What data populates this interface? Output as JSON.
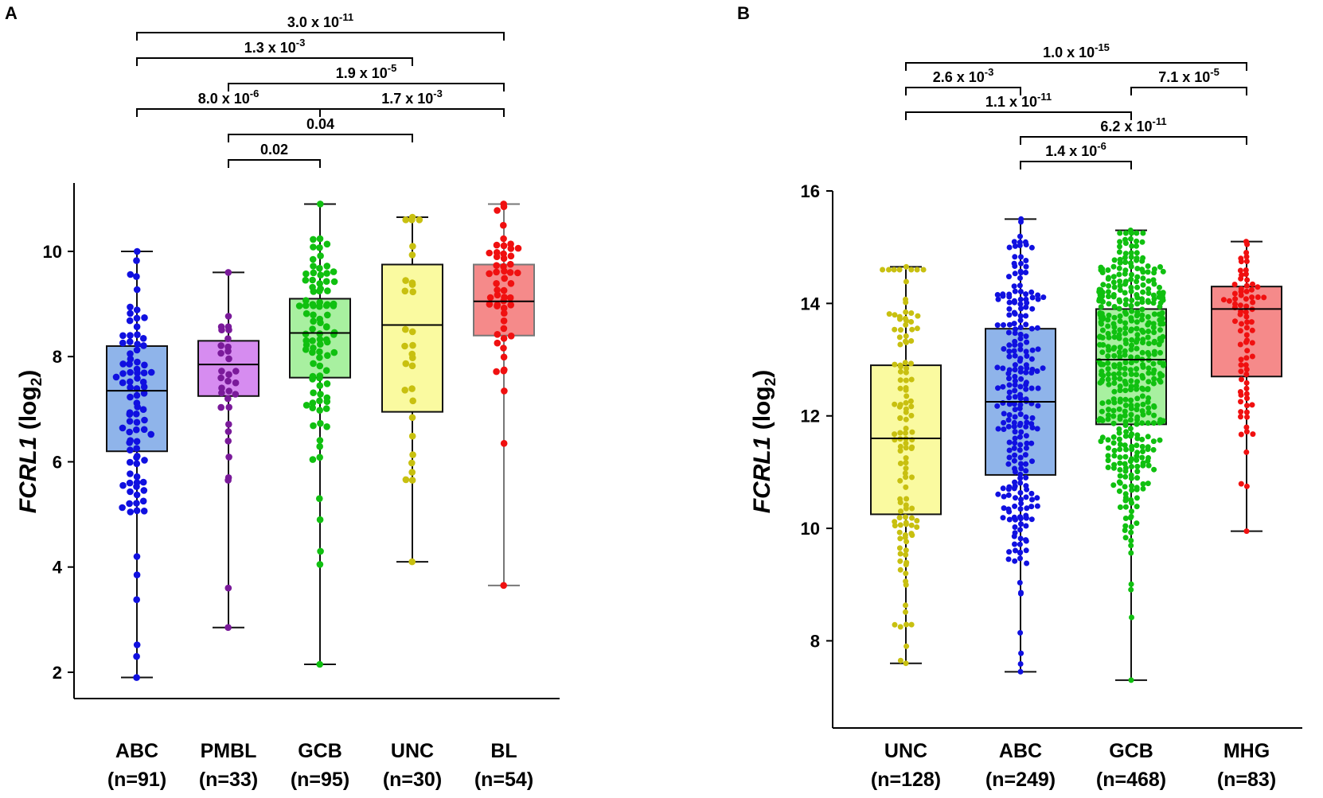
{
  "chart_data": [
    {
      "panel": "A",
      "type": "box",
      "ylabel_gene": "FCRL1",
      "ylabel_unit": "(log",
      "ylabel_sub": "2",
      "ylabel_close": ")",
      "ylim": [
        1.5,
        11.3
      ],
      "yticks": [
        {
          "value": 2,
          "label": "2"
        },
        {
          "value": 4,
          "label": "4"
        },
        {
          "value": 6,
          "label": "6"
        },
        {
          "value": 8,
          "label": "8"
        },
        {
          "value": 10,
          "label": "10"
        }
      ],
      "groups": [
        {
          "name": "ABC",
          "n_label": "(n=91)",
          "n": 91,
          "color": "#1010e0",
          "fill": "#8fb4ea",
          "min": 1.9,
          "q1": 6.2,
          "median": 7.35,
          "q3": 8.2,
          "max": 10.0,
          "extras": [
            1.9,
            2.3,
            3.85,
            4.2,
            10.0
          ]
        },
        {
          "name": "PMBL",
          "n_label": "(n=33)",
          "n": 33,
          "color": "#7a1a9a",
          "fill": "#d68cf0",
          "min": 2.85,
          "q1": 7.25,
          "median": 7.85,
          "q3": 8.3,
          "max": 9.6,
          "extras": [
            2.85,
            3.6,
            5.65,
            5.7,
            9.6
          ]
        },
        {
          "name": "GCB",
          "n_label": "(n=95)",
          "n": 95,
          "color": "#10c010",
          "fill": "#a8f0a0",
          "min": 2.15,
          "q1": 7.6,
          "median": 8.45,
          "q3": 9.1,
          "max": 10.9,
          "extras": [
            2.15,
            4.05,
            4.3,
            4.9,
            5.3,
            10.9
          ]
        },
        {
          "name": "UNC",
          "n_label": "(n=30)",
          "n": 30,
          "color": "#c8c010",
          "fill": "#fafaa0",
          "min": 4.1,
          "q1": 6.95,
          "median": 8.6,
          "q3": 9.75,
          "max": 10.65,
          "extras": [
            4.1,
            5.65,
            10.65
          ]
        },
        {
          "name": "BL",
          "n_label": "(n=54)",
          "n": 54,
          "color": "#f01010",
          "fill": "#f58a8a",
          "min": 3.65,
          "q1": 8.4,
          "median": 9.05,
          "q3": 9.75,
          "max": 10.9,
          "extras": [
            3.65,
            6.35,
            10.9
          ]
        }
      ],
      "comparisons": [
        {
          "from": 0,
          "to": 4,
          "mantissa": "3.0 x 10",
          "exponent": "-11",
          "level": 5
        },
        {
          "from": 0,
          "to": 3,
          "mantissa": "1.3 x 10",
          "exponent": "-3",
          "level": 4
        },
        {
          "from": 1,
          "to": 4,
          "mantissa": "1.9 x 10",
          "exponent": "-5",
          "level": 3
        },
        {
          "from": 0,
          "to": 2,
          "mantissa": "8.0 x 10",
          "exponent": "-6",
          "level": 2
        },
        {
          "from": 2,
          "to": 4,
          "mantissa": "1.7 x 10",
          "exponent": "-3",
          "level": 2
        },
        {
          "from": 1,
          "to": 3,
          "mantissa": "0.04",
          "exponent": "",
          "level": 1
        },
        {
          "from": 1,
          "to": 2,
          "mantissa": "0.02",
          "exponent": "",
          "level": 0
        }
      ]
    },
    {
      "panel": "B",
      "type": "box",
      "ylabel_gene": "FCRL1",
      "ylabel_unit": "(log",
      "ylabel_sub": "2",
      "ylabel_close": ")",
      "ylim": [
        6.45,
        16.0
      ],
      "yticks": [
        {
          "value": 8,
          "label": "8"
        },
        {
          "value": 10,
          "label": "10"
        },
        {
          "value": 12,
          "label": "12"
        },
        {
          "value": 14,
          "label": "14"
        },
        {
          "value": 16,
          "label": "16"
        }
      ],
      "groups": [
        {
          "name": "UNC",
          "n_label": "(n=128)",
          "n": 128,
          "color": "#c8c010",
          "fill": "#fafaa0",
          "min": 7.6,
          "q1": 10.25,
          "median": 11.6,
          "q3": 12.9,
          "max": 14.65,
          "extras": [
            7.6,
            14.65
          ]
        },
        {
          "name": "ABC",
          "n_label": "(n=249)",
          "n": 249,
          "color": "#1010e0",
          "fill": "#8fb4ea",
          "min": 7.45,
          "q1": 10.95,
          "median": 12.25,
          "q3": 13.55,
          "max": 15.5,
          "extras": [
            7.45,
            15.5
          ]
        },
        {
          "name": "GCB",
          "n_label": "(n=468)",
          "n": 468,
          "color": "#10c010",
          "fill": "#a8f0a0",
          "min": 7.3,
          "q1": 11.85,
          "median": 13.0,
          "q3": 13.9,
          "max": 15.3,
          "extras": [
            7.3,
            15.3
          ]
        },
        {
          "name": "MHG",
          "n_label": "(n=83)",
          "n": 83,
          "color": "#f01010",
          "fill": "#f58a8a",
          "min": 9.95,
          "q1": 12.7,
          "median": 13.9,
          "q3": 14.3,
          "max": 15.1,
          "extras": [
            9.95,
            15.1
          ]
        }
      ],
      "comparisons": [
        {
          "from": 0,
          "to": 3,
          "mantissa": "1.0 x 10",
          "exponent": "-15",
          "level": 4
        },
        {
          "from": 0,
          "to": 1,
          "mantissa": "2.6 x 10",
          "exponent": "-3",
          "level": 3
        },
        {
          "from": 2,
          "to": 3,
          "mantissa": "7.1 x 10",
          "exponent": "-5",
          "level": 3
        },
        {
          "from": 0,
          "to": 2,
          "mantissa": "1.1 x 10",
          "exponent": "-11",
          "level": 2
        },
        {
          "from": 1,
          "to": 3,
          "mantissa": "6.2 x 10",
          "exponent": "-11",
          "level": 1
        },
        {
          "from": 1,
          "to": 2,
          "mantissa": "1.4 x 10",
          "exponent": "-6",
          "level": 0
        }
      ]
    }
  ]
}
